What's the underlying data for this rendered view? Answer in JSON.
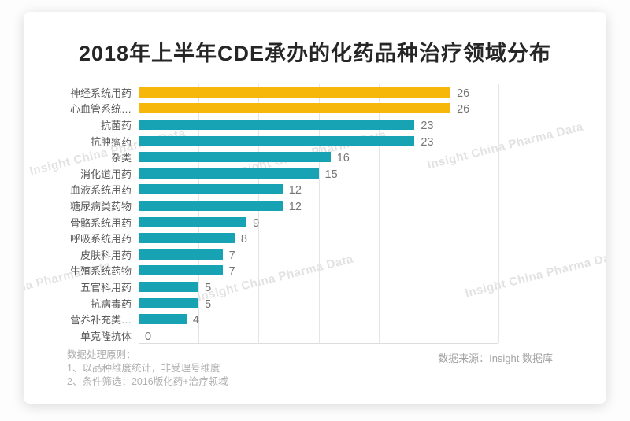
{
  "chart_data": {
    "type": "bar",
    "orientation": "horizontal",
    "title": "2018年上半年CDE承办的化药品种治疗领域分布",
    "categories": [
      "神经系统用药",
      "心血管系统…",
      "抗菌药",
      "抗肿瘤药",
      "杂类",
      "消化道用药",
      "血液系统用药",
      "糖尿病类药物",
      "骨骼系统用药",
      "呼吸系统用药",
      "皮肤科用药",
      "生殖系统药物",
      "五官科用药",
      "抗病毒药",
      "营养补充类…",
      "单克隆抗体"
    ],
    "values": [
      26,
      26,
      23,
      23,
      16,
      15,
      12,
      12,
      9,
      8,
      7,
      7,
      5,
      5,
      4,
      0
    ],
    "colors": [
      "#F6B60A",
      "#F6B60A",
      "#18A3B5",
      "#18A3B5",
      "#18A3B5",
      "#18A3B5",
      "#18A3B5",
      "#18A3B5",
      "#18A3B5",
      "#18A3B5",
      "#18A3B5",
      "#18A3B5",
      "#18A3B5",
      "#18A3B5",
      "#18A3B5",
      "#18A3B5"
    ],
    "highlight_color": "#F6B60A",
    "base_color": "#18A3B5",
    "xlim": [
      0,
      30
    ],
    "grid_interval": 5,
    "grid": true,
    "value_labels": true,
    "legend": "none",
    "xlabel": "",
    "ylabel": ""
  },
  "watermark": {
    "text": "Insight China Pharma Data"
  },
  "footer": {
    "notes_title": "数据处理原则：",
    "note1": "1、以品种维度统计，非受理号维度",
    "note2": "2、条件筛选：2016版化药+治疗领域",
    "source": "数据来源：Insight 数据库"
  }
}
